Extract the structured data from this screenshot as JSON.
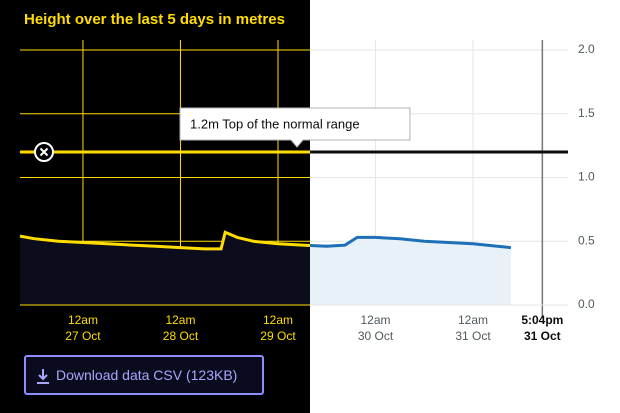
{
  "chart_data": {
    "type": "line",
    "title": "Height over the last 5 days in metres",
    "x": [
      "26 Oct 08:30",
      "26 Oct 12:00",
      "26 Oct 18:00",
      "27 Oct 00:00",
      "27 Oct 06:00",
      "27 Oct 12:00",
      "27 Oct 18:00",
      "28 Oct 00:00",
      "28 Oct 06:00",
      "28 Oct 10:00",
      "28 Oct 11:00",
      "28 Oct 14:00",
      "28 Oct 18:00",
      "29 Oct 00:00",
      "29 Oct 06:00",
      "29 Oct 12:00",
      "29 Oct 16:30",
      "29 Oct 19:30",
      "30 Oct 00:00",
      "30 Oct 06:00",
      "30 Oct 12:00",
      "30 Oct 18:00",
      "31 Oct 00:00",
      "31 Oct 06:00",
      "31 Oct 09:20"
    ],
    "values": [
      0.54,
      0.52,
      0.5,
      0.49,
      0.48,
      0.47,
      0.46,
      0.45,
      0.44,
      0.44,
      0.57,
      0.53,
      0.5,
      0.48,
      0.47,
      0.46,
      0.47,
      0.53,
      0.53,
      0.52,
      0.5,
      0.49,
      0.48,
      0.46,
      0.45
    ],
    "color": "#1d70b8",
    "contrast_color": "#ffdd00",
    "xlim": [
      "26 Oct 08:30",
      "31 Oct 23:23"
    ],
    "xticks": [
      {
        "value": "27 Oct 00:00",
        "label": [
          "12am",
          "27 Oct"
        ]
      },
      {
        "value": "28 Oct 00:00",
        "label": [
          "12am",
          "28 Oct"
        ]
      },
      {
        "value": "29 Oct 00:00",
        "label": [
          "12am",
          "29 Oct"
        ]
      },
      {
        "value": "30 Oct 00:00",
        "label": [
          "12am",
          "30 Oct"
        ]
      },
      {
        "value": "31 Oct 00:00",
        "label": [
          "12am",
          "31 Oct"
        ]
      }
    ],
    "now": {
      "value": "31 Oct 17:04",
      "label": [
        "5:04pm",
        "31 Oct"
      ]
    },
    "ylim": [
      0,
      2
    ],
    "yticks": [
      {
        "value": 0,
        "label": "0.0"
      },
      0.5,
      {
        "value": 1,
        "label": "1.0"
      },
      1.5,
      {
        "value": 2,
        "label": "2.0"
      }
    ],
    "grid": true,
    "threshold": {
      "value": 1.2,
      "label": "1.2m Top of the normal range"
    },
    "download": "Download data CSV (123KB)"
  }
}
